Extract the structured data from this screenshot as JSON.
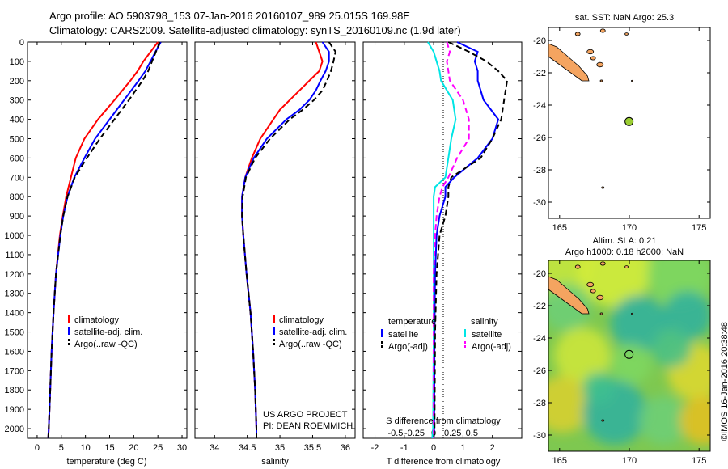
{
  "header": {
    "line1": "Argo profile: AO 5903798_153 07-Jan-2016 20160107_989 25.015S 169.98E",
    "line2": "Climatology: CARS2009. Satellite-adjusted climatology: synTS_20160109.nc (1.9d later)"
  },
  "side_label": "©IMOS 16-Jan-2016 20:38:48",
  "colors": {
    "climatology": "#ff0000",
    "satellite": "#0000ff",
    "argo": "#000000",
    "salinity_satellite": "#00e5e5",
    "salinity_argo": "#ff00ff",
    "land": "#f4a460",
    "argo_marker": "#9acd32"
  },
  "chart_data": [
    {
      "type": "line",
      "panel": "temperature",
      "xlabel": "temperature (deg C)",
      "ylabel": "",
      "xlim": [
        -2,
        31
      ],
      "ylim": [
        2050,
        0
      ],
      "xticks": [
        0,
        5,
        10,
        15,
        20,
        25,
        30
      ],
      "yticks": [
        0,
        100,
        200,
        300,
        400,
        500,
        600,
        700,
        800,
        900,
        1000,
        1100,
        1200,
        1300,
        1400,
        1500,
        1600,
        1700,
        1800,
        1900,
        2000
      ],
      "depth": [
        0,
        50,
        100,
        150,
        200,
        300,
        400,
        500,
        600,
        700,
        800,
        900,
        1000,
        1200,
        1400,
        1600,
        1800,
        2000,
        2050
      ],
      "series": [
        {
          "name": "climatology",
          "color": "#ff0000",
          "dash": false,
          "values": [
            25.0,
            23.5,
            22.0,
            20.8,
            19.3,
            16.0,
            12.6,
            9.8,
            8.0,
            7.0,
            6.0,
            5.3,
            4.7,
            3.9,
            3.4,
            3.0,
            2.7,
            2.4,
            2.3
          ]
        },
        {
          "name": "satellite-adj. clim.",
          "color": "#0000ff",
          "dash": false,
          "values": [
            25.6,
            24.5,
            23.5,
            22.4,
            21.0,
            18.0,
            15.0,
            12.0,
            9.8,
            7.7,
            6.3,
            5.4,
            4.8,
            3.9,
            3.4,
            3.0,
            2.7,
            2.4,
            2.3
          ]
        },
        {
          "name": "Argo(..raw -QC)",
          "color": "#000000",
          "dash": true,
          "values": [
            25.4,
            24.6,
            23.8,
            23.0,
            21.8,
            19.0,
            16.0,
            13.0,
            10.3,
            7.8,
            6.3,
            5.4,
            4.8,
            3.9,
            3.4,
            3.0,
            2.7,
            2.4,
            2.3
          ]
        }
      ],
      "legend": [
        "climatology",
        "satellite-adj. clim.",
        "Argo(..raw -QC)"
      ]
    },
    {
      "type": "line",
      "panel": "salinity",
      "xlabel": "salinity",
      "xlim": [
        33.7,
        36.15
      ],
      "ylim": [
        2050,
        0
      ],
      "xticks": [
        34,
        34.5,
        35,
        35.5,
        36
      ],
      "depth": [
        0,
        50,
        100,
        150,
        200,
        250,
        300,
        350,
        400,
        500,
        600,
        700,
        800,
        900,
        1000,
        1200,
        1400,
        1600,
        1800,
        2000,
        2050
      ],
      "series": [
        {
          "name": "climatology",
          "color": "#ff0000",
          "dash": false,
          "values": [
            35.55,
            35.6,
            35.65,
            35.6,
            35.45,
            35.3,
            35.15,
            35.0,
            34.9,
            34.7,
            34.57,
            34.47,
            34.42,
            34.42,
            34.44,
            34.49,
            34.55,
            34.59,
            34.62,
            34.64,
            34.64
          ]
        },
        {
          "name": "satellite-adj. clim.",
          "color": "#0000ff",
          "dash": false,
          "values": [
            35.65,
            35.75,
            35.75,
            35.7,
            35.62,
            35.55,
            35.45,
            35.3,
            35.1,
            34.8,
            34.6,
            34.47,
            34.42,
            34.42,
            34.44,
            34.49,
            34.55,
            34.59,
            34.62,
            34.64,
            34.64
          ]
        },
        {
          "name": "Argo(..raw -QC)",
          "color": "#000000",
          "dash": true,
          "values": [
            35.75,
            35.85,
            35.82,
            35.78,
            35.72,
            35.65,
            35.52,
            35.35,
            35.15,
            34.85,
            34.62,
            34.48,
            34.43,
            34.42,
            34.44,
            34.49,
            34.55,
            34.59,
            34.62,
            34.64,
            34.64
          ]
        }
      ],
      "legend": [
        "climatology",
        "satellite-adj. clim.",
        "Argo(..raw -QC)"
      ],
      "annotations": [
        "US ARGO PROJECT",
        "PI: DEAN ROEMMICH"
      ]
    },
    {
      "type": "line",
      "panel": "difference",
      "xlabel": "T difference from climatology",
      "xlabel_top": "S difference from climatology",
      "xlim": [
        -2.4,
        3.0
      ],
      "ylim": [
        2050,
        0
      ],
      "xticks": [
        -2,
        -1,
        0,
        1,
        2
      ],
      "xticks_S_labels": [
        "-0.5",
        "-0.25",
        "0",
        "0.25",
        "0.5"
      ],
      "xticks_S_values": [
        -0.5,
        -0.25,
        0,
        0.25,
        0.5
      ],
      "depth": [
        0,
        50,
        100,
        150,
        200,
        300,
        400,
        500,
        600,
        700,
        750,
        800,
        900,
        1000,
        1200,
        1500,
        2000,
        2050
      ],
      "series": [
        {
          "name": "temperature satellite",
          "color": "#0000ff",
          "dash": false,
          "values": [
            0.8,
            1.5,
            1.4,
            1.5,
            1.5,
            1.7,
            2.2,
            2.0,
            1.5,
            0.7,
            0.4,
            0.4,
            0.2,
            0.1,
            0.05,
            0.03,
            0.02,
            0.0
          ]
        },
        {
          "name": "temperature Argo(-adj)",
          "color": "#000000",
          "dash": true,
          "values": [
            0.5,
            1.2,
            1.8,
            2.2,
            2.5,
            2.4,
            2.3,
            2.0,
            1.6,
            0.6,
            0.5,
            0.5,
            0.4,
            0.2,
            0.1,
            0.05,
            0.03,
            0.0
          ]
        },
        {
          "name": "salinity satellite",
          "color": "#00e5e5",
          "dash": false,
          "values": [
            -0.2,
            0.0,
            0.1,
            0.2,
            0.25,
            0.65,
            0.75,
            0.6,
            0.5,
            0.4,
            0.05,
            0.0,
            0.0,
            0.0,
            0.0,
            0.0,
            -0.02,
            -0.05
          ]
        },
        {
          "name": "salinity Argo(-adj)",
          "color": "#ff00ff",
          "dash": true,
          "values": [
            0.45,
            0.55,
            0.45,
            0.5,
            0.55,
            1.0,
            1.2,
            1.2,
            0.8,
            0.5,
            0.3,
            0.2,
            0.1,
            0.05,
            0.0,
            0.0,
            0.0,
            0.0
          ]
        }
      ],
      "legend_headers": [
        "temperature",
        "salinity"
      ],
      "legend": [
        "satellite",
        "Argo(-adj)",
        "satellite",
        "Argo(-adj)"
      ]
    },
    {
      "type": "map",
      "panel": "sst",
      "title": "sat. SST: NaN Argo: 25.3",
      "xlim": [
        164.2,
        175.8
      ],
      "ylim": [
        -31,
        -19.2
      ],
      "xticks": [
        165,
        170,
        175
      ],
      "yticks": [
        -20,
        -22,
        -24,
        -26,
        -28,
        -30
      ],
      "argo_position": [
        169.98,
        -25.015
      ]
    },
    {
      "type": "heatmap",
      "panel": "sla",
      "title_line1": "Altim. SLA: 0.21",
      "title_line2": "Argo h1000: 0.18 h2000: NaN",
      "xlim": [
        164.2,
        175.8
      ],
      "ylim": [
        -31,
        -19.2
      ],
      "xticks": [
        165,
        170,
        175
      ],
      "yticks": [
        -20,
        -22,
        -24,
        -26,
        -28,
        -30
      ],
      "argo_position": [
        169.98,
        -25.015
      ]
    }
  ]
}
